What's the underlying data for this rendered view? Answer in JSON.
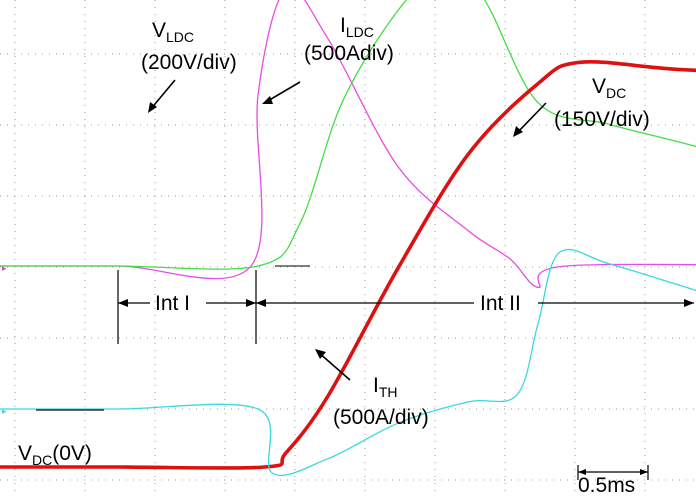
{
  "chart_data": {
    "type": "line",
    "title": "",
    "xlabel": "",
    "ylabel": "",
    "grid": true,
    "x_unit": "ms",
    "scale_label": "0.5ms",
    "colors": {
      "vldc": "#e64de6",
      "ildc": "#44dd44",
      "vdc": "#dd1111",
      "ith": "#3ad8e0",
      "marker": "#dd4da0",
      "grid": "#9a9a9a"
    },
    "labels": {
      "vldc_main": "V",
      "vldc_sub": "LDC",
      "vldc_scale": "(200V/div)",
      "ildc_main": "I",
      "ildc_sub": "LDC",
      "ildc_scale": "(500Adiv)",
      "vdc_main": "V",
      "vdc_sub": "DC",
      "vdc_scale": "(150V/div)",
      "ith_main": "I",
      "ith_sub": "TH",
      "ith_scale": "(500A/div)",
      "vdc0_main": "V",
      "vdc0_sub": "DC",
      "vdc0_rest": "(0V)",
      "int1": "Int I",
      "int2": "Int II"
    },
    "series": [
      {
        "name": "VLDC",
        "t": [
          0,
          0.95,
          1.0,
          1.2,
          1.5,
          2.0,
          2.5,
          2.8,
          3.0,
          3.2,
          5.0
        ],
        "v": [
          0,
          0,
          2.4,
          3.9,
          3.2,
          1.4,
          0.5,
          0.1,
          -0.3,
          0,
          0
        ]
      },
      {
        "name": "ILDC",
        "t": [
          0,
          1.0,
          1.3,
          1.6,
          2.0,
          2.3,
          2.6,
          3.0,
          3.5,
          4.0,
          4.5,
          5.0
        ],
        "v": [
          0,
          0,
          0.6,
          2.3,
          3.6,
          4.1,
          3.8,
          2.3,
          2.0,
          1.75,
          1.5,
          1.3
        ]
      },
      {
        "name": "VDC",
        "t": [
          0,
          1.05,
          1.2,
          1.5,
          2.0,
          2.5,
          3.0,
          3.3,
          4.0,
          5.0
        ],
        "v": [
          0,
          0,
          0.2,
          1.0,
          2.8,
          4.4,
          5.4,
          5.7,
          5.6,
          5.5
        ]
      },
      {
        "name": "ITH",
        "t": [
          0,
          1.0,
          1.1,
          1.5,
          2.0,
          2.5,
          2.85,
          3.0,
          3.15,
          3.5,
          4.0,
          4.5,
          5.0
        ],
        "v": [
          0,
          0,
          -0.9,
          -0.7,
          -0.2,
          0.1,
          0.2,
          1.2,
          2.2,
          2.05,
          1.75,
          1.45,
          1.25
        ]
      }
    ]
  }
}
